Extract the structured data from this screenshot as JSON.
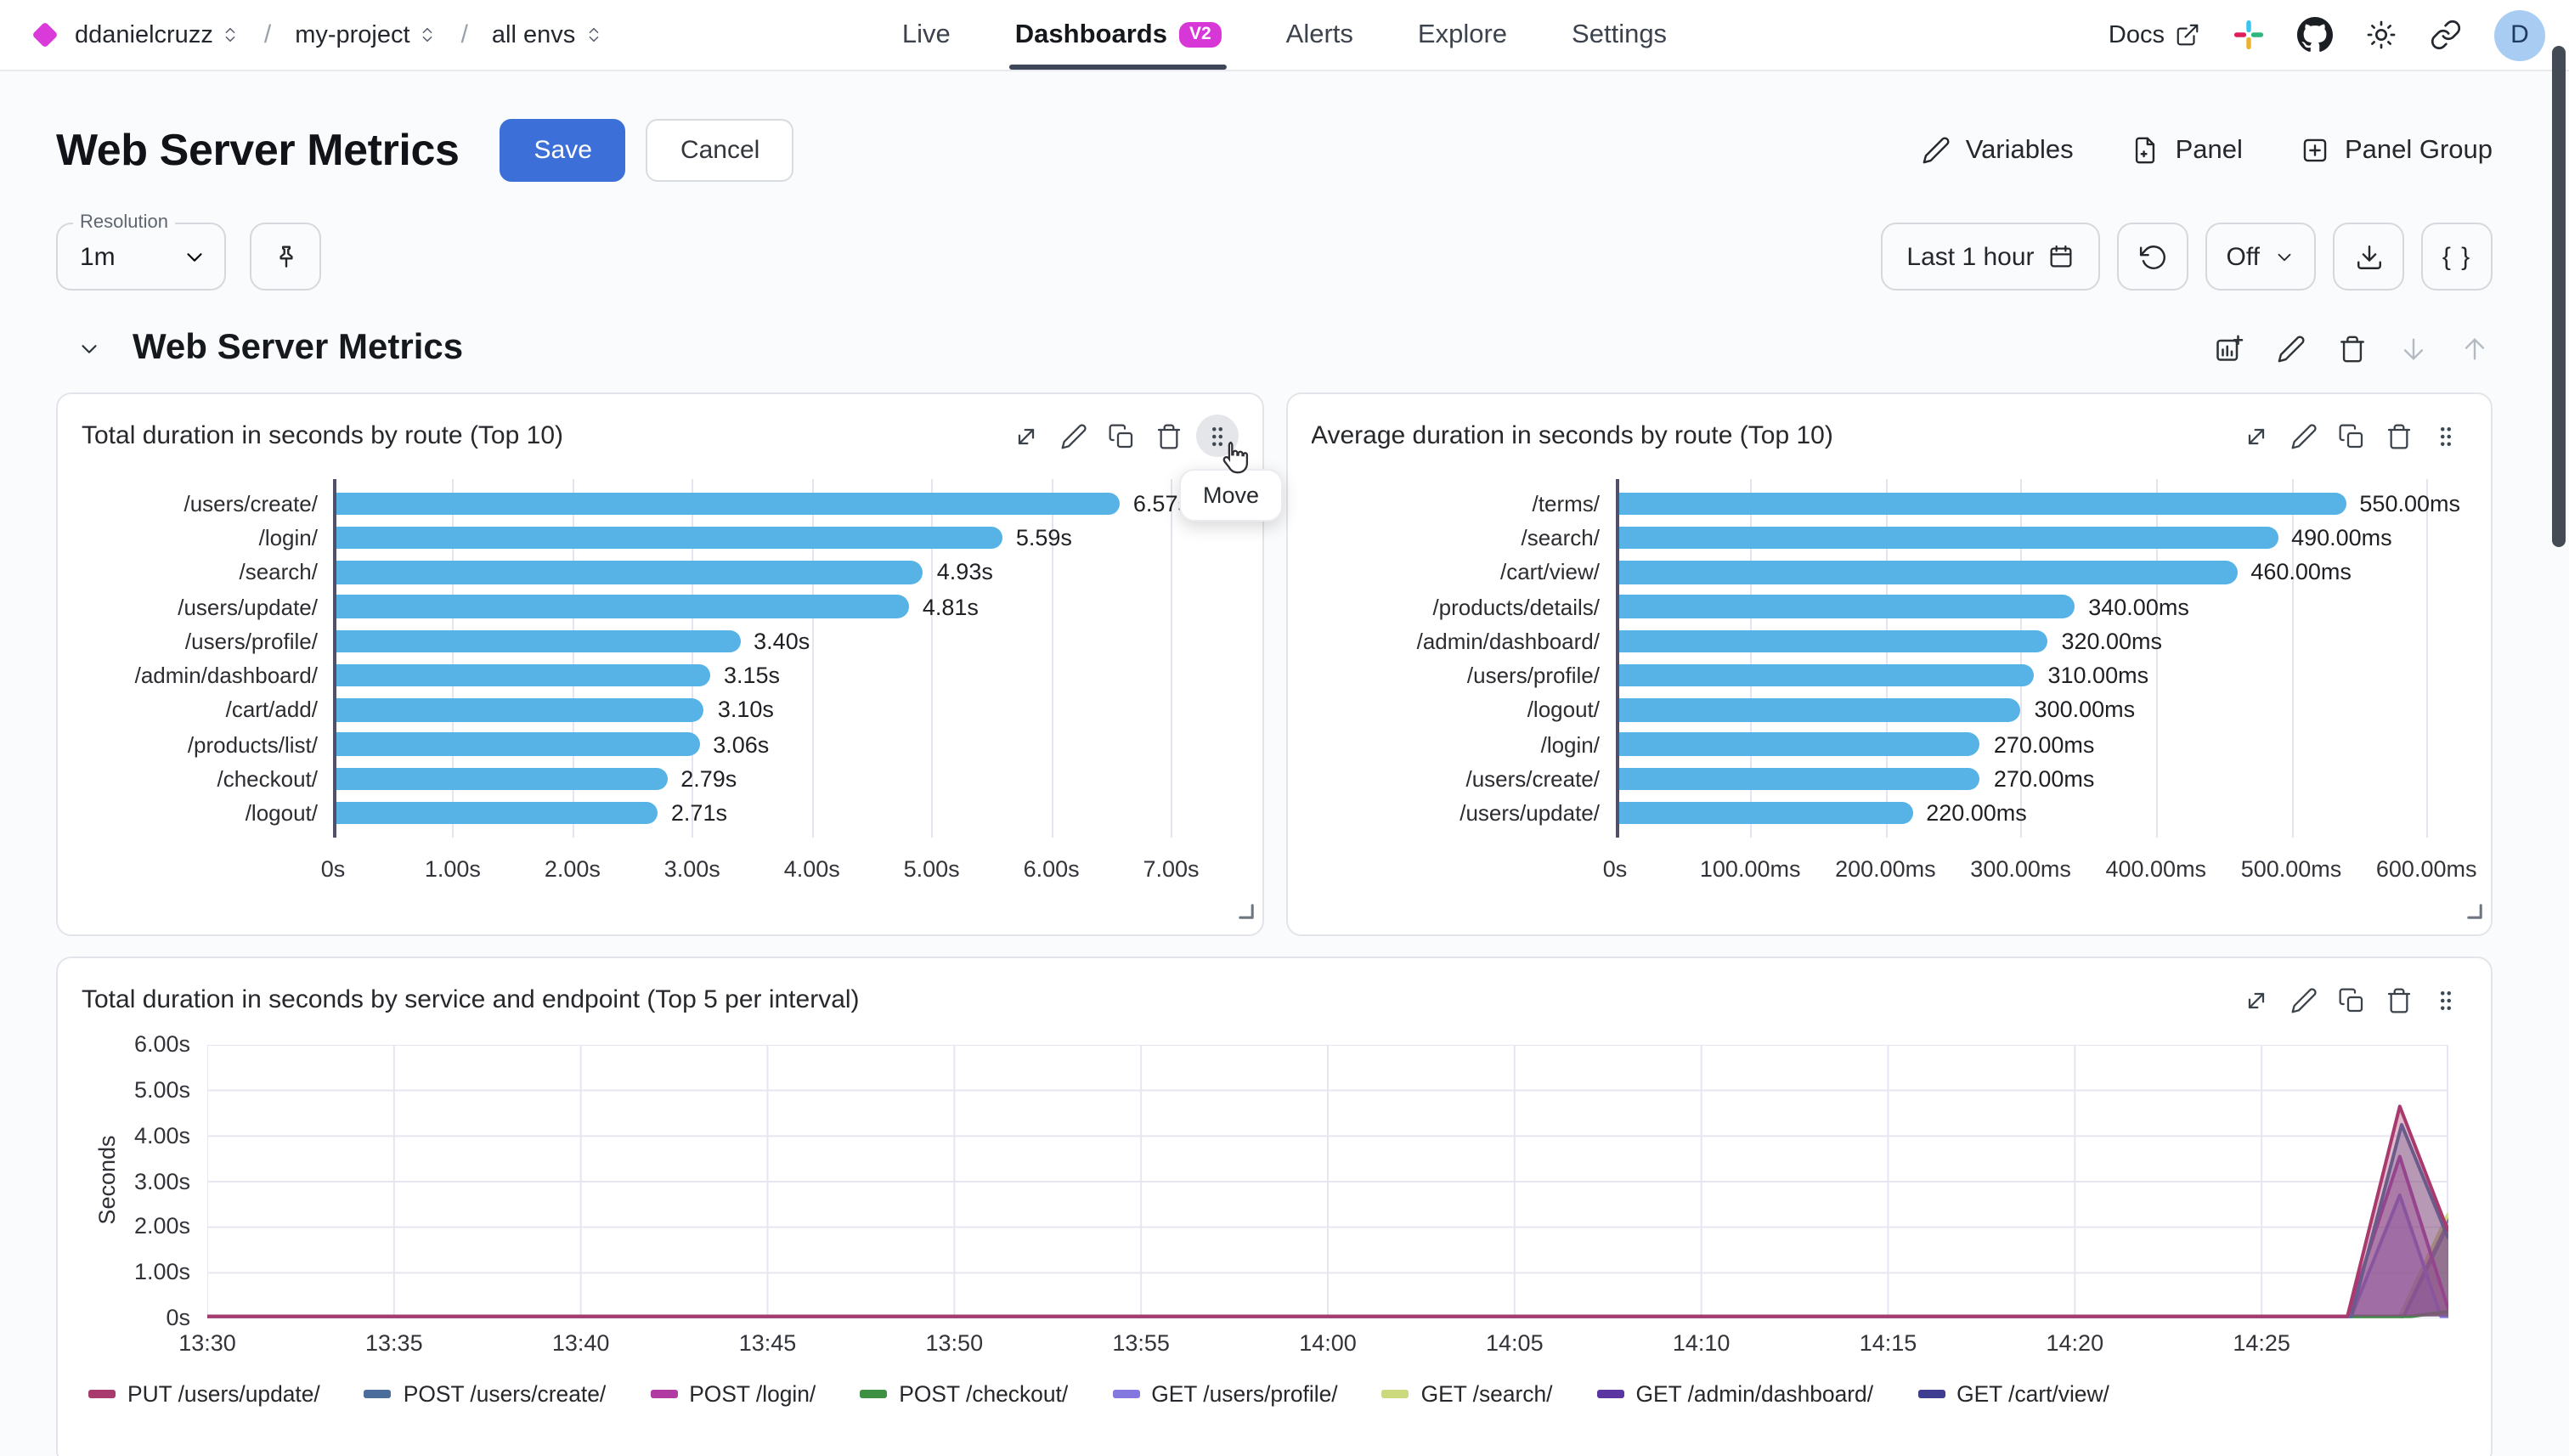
{
  "header": {
    "breadcrumb": {
      "separator": "/",
      "items": [
        {
          "label": "ddanielcruzz"
        },
        {
          "label": "my-project"
        },
        {
          "label": "all envs"
        }
      ]
    },
    "nav": {
      "items": [
        {
          "label": "Live",
          "active": false
        },
        {
          "label": "Dashboards",
          "active": true,
          "badge": "V2"
        },
        {
          "label": "Alerts",
          "active": false
        },
        {
          "label": "Explore",
          "active": false
        },
        {
          "label": "Settings",
          "active": false
        }
      ]
    },
    "docs_label": "Docs",
    "avatar_initial": "D",
    "icons": [
      "external-link-icon",
      "slack-icon",
      "github-icon",
      "theme-icon",
      "share-link-icon"
    ]
  },
  "page": {
    "title": "Web Server Metrics",
    "save_label": "Save",
    "cancel_label": "Cancel",
    "variables_label": "Variables",
    "panel_label": "Panel",
    "panel_group_label": "Panel Group"
  },
  "toolbar": {
    "resolution_label": "Resolution",
    "resolution_value": "1m",
    "time_range": "Last 1 hour",
    "refresh_interval": "Off",
    "json_label": "{ }",
    "icons": [
      "pin-icon",
      "calendar-icon",
      "refresh-icon",
      "chevron-down-icon",
      "download-icon",
      "braces-icon"
    ]
  },
  "section": {
    "title": "Web Server Metrics",
    "move_tooltip": "Move",
    "icons": [
      "add-panel-icon",
      "edit-icon",
      "delete-icon",
      "move-down-icon",
      "move-up-icon"
    ]
  },
  "panel_action_icons": [
    "expand-icon",
    "edit-icon",
    "duplicate-icon",
    "delete-icon",
    "drag-handle-icon"
  ],
  "panels": [
    {
      "title": "Total duration in seconds by route (Top 10)"
    },
    {
      "title": "Average duration in seconds by route (Top 10)"
    },
    {
      "title": "Total duration in seconds by service and endpoint (Top 5 per interval)"
    }
  ],
  "colors": {
    "accent_blue": "#3d6fd8",
    "bar_blue": "#57b2e5",
    "badge_magenta": "#d837d8",
    "brand_diamond": "#d93ad9",
    "avatar_bg": "#a9cdf2",
    "grid": "#e4e4ee"
  },
  "chart_data": [
    {
      "type": "bar",
      "orientation": "horizontal",
      "title": "Total duration in seconds by route (Top 10)",
      "unit": "seconds",
      "categories": [
        "/users/create/",
        "/login/",
        "/search/",
        "/users/update/",
        "/users/profile/",
        "/admin/dashboard/",
        "/cart/add/",
        "/products/list/",
        "/checkout/",
        "/logout/"
      ],
      "values": [
        6.57,
        5.59,
        4.93,
        4.81,
        3.4,
        3.15,
        3.1,
        3.06,
        2.79,
        2.71
      ],
      "value_labels": [
        "6.57s",
        "5.59s",
        "4.93s",
        "4.81s",
        "3.40s",
        "3.15s",
        "3.10s",
        "3.06s",
        "2.79s",
        "2.71s"
      ],
      "xlim": [
        0,
        7.5
      ],
      "xticks": {
        "values": [
          0,
          1,
          2,
          3,
          4,
          5,
          6,
          7
        ],
        "labels": [
          "0s",
          "1.00s",
          "2.00s",
          "3.00s",
          "4.00s",
          "5.00s",
          "6.00s",
          "7.00s"
        ]
      },
      "bar_color": "#57b2e5"
    },
    {
      "type": "bar",
      "orientation": "horizontal",
      "title": "Average duration in seconds by route (Top 10)",
      "unit": "milliseconds",
      "categories": [
        "/terms/",
        "/search/",
        "/cart/view/",
        "/products/details/",
        "/admin/dashboard/",
        "/users/profile/",
        "/logout/",
        "/login/",
        "/users/create/",
        "/users/update/"
      ],
      "values": [
        550,
        490,
        460,
        340,
        320,
        310,
        300,
        270,
        270,
        220
      ],
      "value_labels": [
        "550.00ms",
        "490.00ms",
        "460.00ms",
        "340.00ms",
        "320.00ms",
        "310.00ms",
        "300.00ms",
        "270.00ms",
        "270.00ms",
        "220.00ms"
      ],
      "xlim": [
        0,
        625
      ],
      "xticks": {
        "values": [
          0,
          100,
          200,
          300,
          400,
          500,
          600
        ],
        "labels": [
          "0s",
          "100.00ms",
          "200.00ms",
          "300.00ms",
          "400.00ms",
          "500.00ms",
          "600.00ms"
        ]
      },
      "bar_color": "#57b2e5"
    },
    {
      "type": "area",
      "title": "Total duration in seconds by service and endpoint (Top 5 per interval)",
      "ylabel": "Seconds",
      "ylim": [
        0,
        6
      ],
      "yticks": {
        "values": [
          0,
          1,
          2,
          3,
          4,
          5,
          6
        ],
        "labels": [
          "0s",
          "1.00s",
          "2.00s",
          "3.00s",
          "4.00s",
          "5.00s",
          "6.00s"
        ]
      },
      "x_start": "13:30",
      "x_range_minutes": 60,
      "xticks": {
        "minutes": [
          0,
          5,
          10,
          15,
          20,
          25,
          30,
          35,
          40,
          45,
          50,
          55
        ],
        "labels": [
          "13:30",
          "13:35",
          "13:40",
          "13:45",
          "13:50",
          "13:55",
          "14:00",
          "14:05",
          "14:10",
          "14:15",
          "14:20",
          "14:25"
        ]
      },
      "series": [
        {
          "name": "PUT /users/update/",
          "color": "#a83a6e",
          "points": [
            [
              0,
              0
            ],
            [
              57.3,
              0
            ],
            [
              58.7,
              4.65
            ],
            [
              60,
              1.9
            ]
          ]
        },
        {
          "name": "POST /users/create/",
          "color": "#4a6d9b",
          "points": [
            [
              0,
              0
            ],
            [
              57.4,
              0
            ],
            [
              58.75,
              4.25
            ],
            [
              60,
              1.75
            ]
          ]
        },
        {
          "name": "POST /login/",
          "color": "#b03aa2",
          "points": [
            [
              0,
              0
            ],
            [
              57.3,
              0
            ],
            [
              58.7,
              3.55
            ],
            [
              60,
              0.2
            ]
          ]
        },
        {
          "name": "POST /checkout/",
          "color": "#3e9142",
          "points": [
            [
              0,
              0
            ],
            [
              59,
              0
            ],
            [
              60,
              0.15
            ]
          ]
        },
        {
          "name": "GET /users/profile/",
          "color": "#8477e0",
          "points": [
            [
              0,
              0
            ],
            [
              57.4,
              0
            ],
            [
              58.7,
              2.7
            ],
            [
              59.8,
              0
            ],
            [
              60,
              0
            ]
          ]
        },
        {
          "name": "GET /search/",
          "color": "#ccd97d",
          "points": [
            [
              0,
              0
            ],
            [
              58.7,
              0
            ],
            [
              60,
              2.3
            ]
          ]
        },
        {
          "name": "GET /admin/dashboard/",
          "color": "#5b35a1",
          "points": [
            [
              0,
              0
            ],
            [
              58.8,
              0
            ],
            [
              60,
              2.2
            ]
          ]
        },
        {
          "name": "GET /cart/view/",
          "color": "#3f3d8f",
          "points": [
            [
              0,
              0
            ],
            [
              58.8,
              0
            ],
            [
              60,
              2.05
            ]
          ]
        }
      ]
    }
  ]
}
